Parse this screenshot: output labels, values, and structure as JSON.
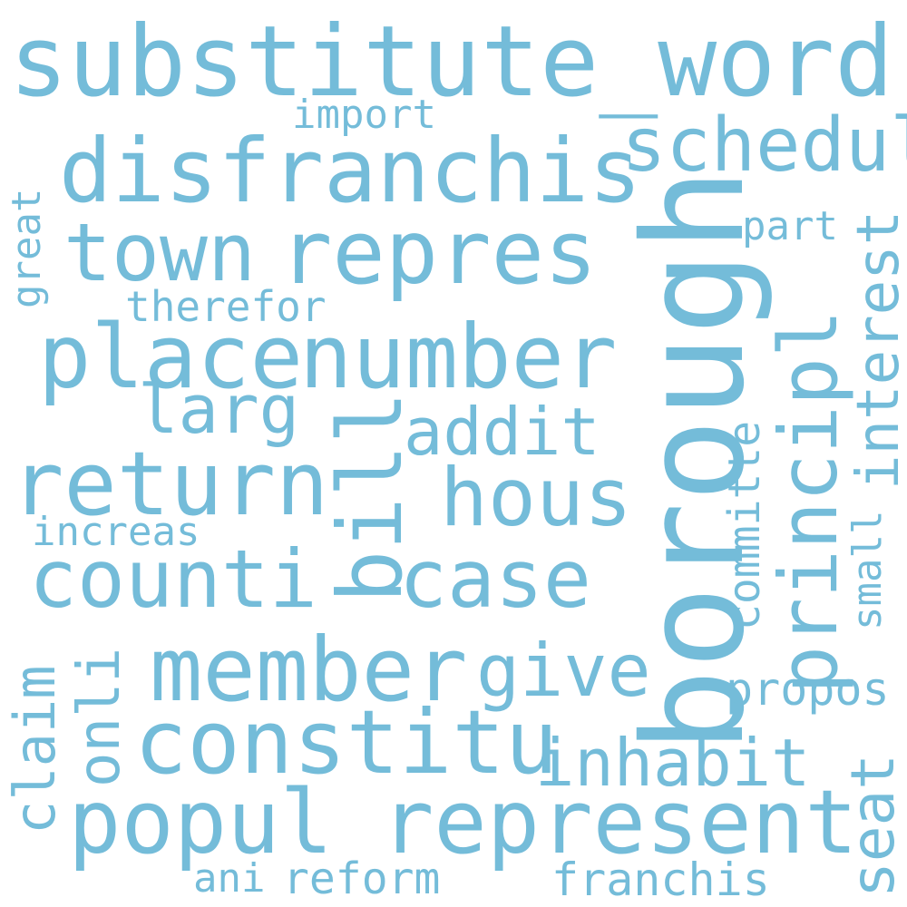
{
  "colors": {
    "background": "#ffffff",
    "word": "#74bcd9"
  },
  "words": {
    "substitute_word": "substitute_word",
    "borough": "borough",
    "disfranchis": "disfranchis",
    "schedul": "schedul",
    "import": "import",
    "repres": "repres",
    "town": "town",
    "part": "part",
    "interest": "interest",
    "great": "great",
    "therefor": "therefor",
    "place": "place",
    "number": "number",
    "principl": "principl",
    "larg": "larg",
    "bill": "bill",
    "addit": "addit",
    "committe": "committe",
    "return": "return",
    "hous": "hous",
    "small": "small",
    "increas": "increas",
    "counti": "counti",
    "case": "case",
    "claim": "claim",
    "onli": "onli",
    "member": "member",
    "give": "give",
    "propos": "propos",
    "constitu": "constitu",
    "inhabit": "inhabit",
    "seat": "seat",
    "popul": "popul",
    "represent": "represent",
    "ani": "ani",
    "reform": "reform",
    "franchis": "franchis"
  }
}
